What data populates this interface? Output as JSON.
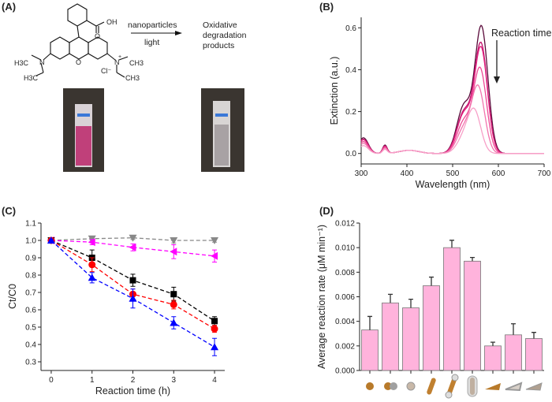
{
  "panels": {
    "a": "(A)",
    "b": "(B)",
    "c": "(C)",
    "d": "(D)"
  },
  "scheme": {
    "reagent_labels": {
      "cooh": "OH",
      "o_carbonyl": "O",
      "ring_o": "O",
      "n_left": "N",
      "n_right": "N",
      "plus": "+",
      "h3c_1": "H3C",
      "h3c_2": "H3C",
      "ch3_1": "CH3",
      "ch3_2": "CH3",
      "counterion": "Cl⁻"
    },
    "arrow_top": "nanoparticles",
    "arrow_bottom": "light",
    "product_lines": [
      "Oxidative",
      "degradation",
      "products"
    ],
    "photo_colors": {
      "before": "#c0407a",
      "after": "#e8e4e6"
    }
  },
  "chart_data": [
    {
      "id": "B",
      "type": "line",
      "xlabel": "Wavelength (nm)",
      "ylabel": "Extinction (a.u.)",
      "xlim": [
        300,
        700
      ],
      "ylim": [
        -0.05,
        0.65
      ],
      "xticks": [
        300,
        400,
        500,
        600,
        700
      ],
      "yticks": [
        0.0,
        0.2,
        0.4,
        0.6
      ],
      "annotation": "Reaction time",
      "series": [
        {
          "name": "t0",
          "peak_nm": 563,
          "peak": 0.6,
          "color": "#5a0a3a"
        },
        {
          "name": "t1",
          "peak_nm": 562,
          "peak": 0.52,
          "color": "#c0106a"
        },
        {
          "name": "t2",
          "peak_nm": 562,
          "peak": 0.5,
          "color": "#e0207e"
        },
        {
          "name": "t3",
          "peak_nm": 560,
          "peak": 0.4,
          "color": "#ee4a96"
        },
        {
          "name": "t4",
          "peak_nm": 556,
          "peak": 0.31,
          "color": "#f274ae"
        },
        {
          "name": "t5",
          "peak_nm": 548,
          "peak": 0.19,
          "color": "#f7a0c8"
        }
      ]
    },
    {
      "id": "C",
      "type": "scatter",
      "xlabel": "Reaction time (h)",
      "ylabel": "Ct/C0",
      "xlim": [
        -0.25,
        4.25
      ],
      "ylim": [
        0.25,
        1.1
      ],
      "xticks": [
        0,
        1,
        2,
        3,
        4
      ],
      "yticks": [
        0.3,
        0.4,
        0.5,
        0.6,
        0.7,
        0.8,
        0.9,
        1.0,
        1.1
      ],
      "x": [
        0,
        1,
        2,
        3,
        4
      ],
      "series": [
        {
          "name": "gray",
          "marker": "tri-down",
          "color": "#888888",
          "values": [
            1.0,
            1.01,
            1.015,
            1.0,
            1.0
          ],
          "err": [
            0.005,
            0.01,
            0.01,
            0.015,
            0.01
          ]
        },
        {
          "name": "magenta",
          "marker": "tri-left",
          "color": "#ff00ff",
          "values": [
            1.0,
            0.99,
            0.96,
            0.935,
            0.91
          ],
          "err": [
            0.005,
            0.015,
            0.02,
            0.04,
            0.035
          ]
        },
        {
          "name": "black",
          "marker": "square",
          "color": "#000000",
          "values": [
            1.0,
            0.9,
            0.77,
            0.69,
            0.535
          ],
          "err": [
            0.005,
            0.045,
            0.035,
            0.04,
            0.025
          ]
        },
        {
          "name": "red",
          "marker": "circle",
          "color": "#ff0000",
          "values": [
            1.0,
            0.86,
            0.69,
            0.63,
            0.49
          ],
          "err": [
            0.005,
            0.04,
            0.03,
            0.025,
            0.02
          ]
        },
        {
          "name": "blue",
          "marker": "tri-up",
          "color": "#0000ff",
          "values": [
            1.0,
            0.785,
            0.665,
            0.525,
            0.385
          ],
          "err": [
            0.005,
            0.03,
            0.055,
            0.035,
            0.05
          ]
        }
      ]
    },
    {
      "id": "D",
      "type": "bar",
      "ylabel": "Average reaction rate (μM min⁻¹)",
      "ylim": [
        0,
        0.012
      ],
      "yticks": [
        "0.000",
        "0.002",
        "0.004",
        "0.006",
        "0.008",
        "0.010",
        "0.012"
      ],
      "categories": [
        "sphere",
        "sphere-dimer",
        "core-shell sphere",
        "rod",
        "dumbbell rod",
        "coated rod",
        "triangle",
        "framed triangle",
        "coated triangle"
      ],
      "values": [
        0.0033,
        0.0055,
        0.0051,
        0.0069,
        0.01,
        0.0089,
        0.002,
        0.0029,
        0.0026
      ],
      "err": [
        0.0011,
        0.0007,
        0.0007,
        0.0007,
        0.0006,
        0.0003,
        0.0003,
        0.0009,
        0.0005
      ],
      "bar_color": "#ffb3dc"
    }
  ]
}
